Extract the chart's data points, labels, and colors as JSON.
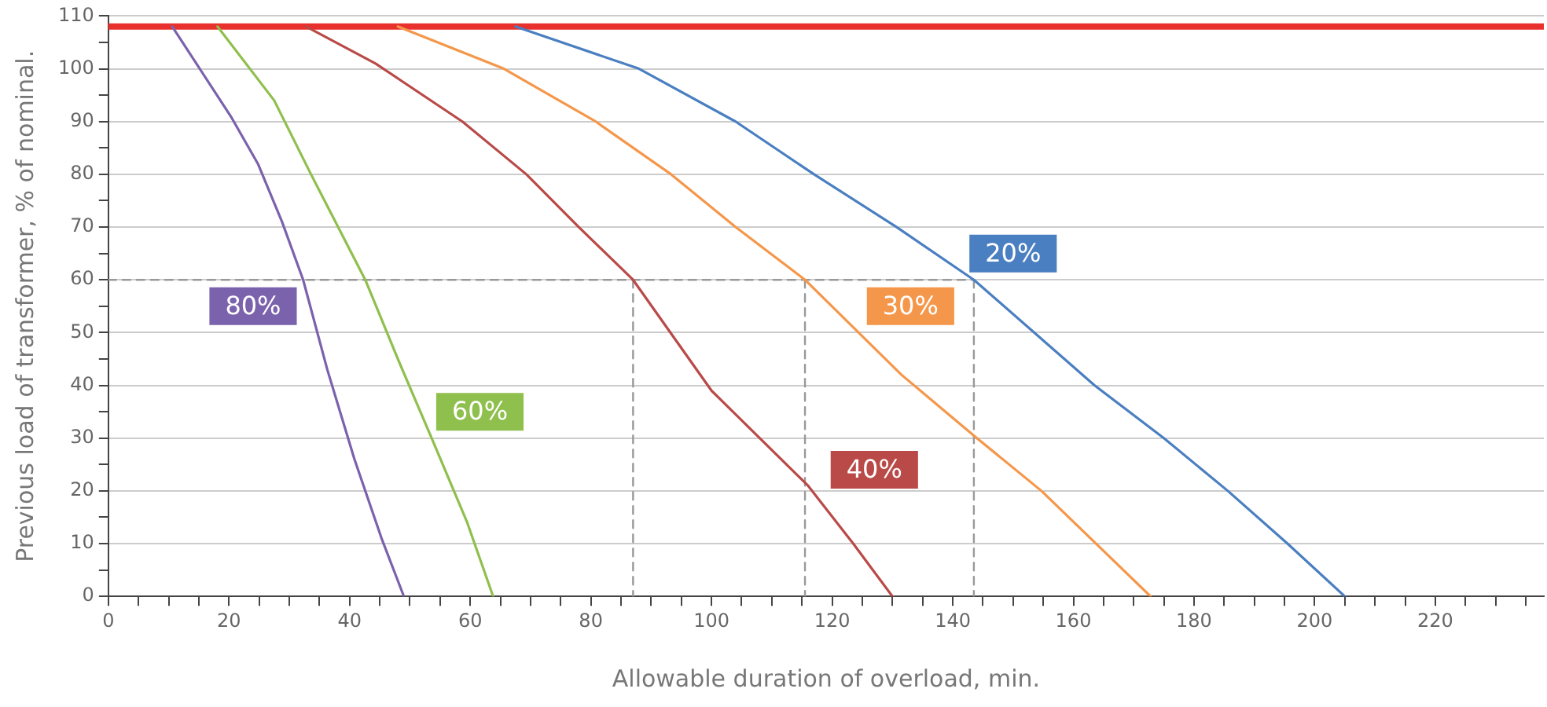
{
  "chart_data": {
    "type": "line",
    "xlabel": "Allowable duration of overload, min.",
    "ylabel": "Previous load of transformer, % of nominal.",
    "xlim": [
      0,
      238
    ],
    "ylim": [
      0,
      110
    ],
    "xticks": [
      0,
      {
        "value": 5,
        "label": null
      },
      20,
      {
        "value": 10,
        "label": null
      },
      {
        "value": 15,
        "label": null
      },
      {
        "value": 25,
        "label": null
      },
      {
        "value": 30,
        "label": null
      },
      {
        "value": 35,
        "label": null
      },
      40,
      {
        "value": 45,
        "label": null
      },
      {
        "value": 50,
        "label": null
      },
      {
        "value": 55,
        "label": null
      },
      60,
      {
        "value": 65,
        "label": null
      },
      {
        "value": 70,
        "label": null
      },
      {
        "value": 75,
        "label": null
      },
      80,
      {
        "value": 85,
        "label": null
      },
      {
        "value": 90,
        "label": null
      },
      {
        "value": 95,
        "label": null
      },
      100,
      {
        "value": 105,
        "label": null
      },
      {
        "value": 110,
        "label": null
      },
      {
        "value": 115,
        "label": null
      },
      120,
      {
        "value": 125,
        "label": null
      },
      {
        "value": 130,
        "label": null
      },
      {
        "value": 135,
        "label": null
      },
      140,
      {
        "value": 145,
        "label": null
      },
      {
        "value": 150,
        "label": null
      },
      {
        "value": 155,
        "label": null
      },
      160,
      {
        "value": 165,
        "label": null
      },
      {
        "value": 170,
        "label": null
      },
      {
        "value": 175,
        "label": null
      },
      180,
      {
        "value": 185,
        "label": null
      },
      {
        "value": 190,
        "label": null
      },
      {
        "value": 195,
        "label": null
      },
      200,
      {
        "value": 205,
        "label": null
      },
      {
        "value": 210,
        "label": null
      },
      {
        "value": 215,
        "label": null
      },
      220,
      {
        "value": 225,
        "label": null
      },
      {
        "value": 230,
        "label": null
      },
      {
        "value": 235,
        "label": null
      }
    ],
    "yticks": [
      0,
      {
        "value": 5,
        "label": null
      },
      10,
      {
        "value": 15,
        "label": null
      },
      20,
      {
        "value": 25,
        "label": null
      },
      30,
      {
        "value": 35,
        "label": null
      },
      40,
      {
        "value": 45,
        "label": null
      },
      50,
      {
        "value": 55,
        "label": null
      },
      60,
      {
        "value": 65,
        "label": null
      },
      70,
      {
        "value": 75,
        "label": null
      },
      80,
      {
        "value": 85,
        "label": null
      },
      90,
      {
        "value": 95,
        "label": null
      },
      100,
      {
        "value": 105,
        "label": null
      },
      110
    ],
    "grid": "y",
    "marker": "none",
    "line_style": "solid",
    "ref_lines": [
      {
        "axis": "y",
        "value": 108,
        "color": "#e8312c"
      }
    ],
    "series": [
      {
        "name": "80%",
        "color": "#7b62ac",
        "x": [
          10.6,
          20.3,
          24.8,
          28.8,
          32.3,
          36.3,
          40.8,
          45.3,
          49
        ],
        "values": [
          108,
          91,
          82,
          71,
          60,
          43,
          26,
          11,
          0
        ]
      },
      {
        "name": "60%",
        "color": "#8fbf4d",
        "x": [
          18.1,
          27.5,
          33.6,
          39,
          42.6,
          48,
          53.6,
          59.5,
          63.8
        ],
        "values": [
          108,
          94,
          80,
          68,
          60,
          45,
          30,
          14,
          0
        ]
      },
      {
        "name": "40%",
        "color": "#b94a48",
        "x": [
          32.8,
          44.3,
          58.7,
          69.3,
          78,
          87,
          100,
          116,
          123.5,
          130
        ],
        "values": [
          108,
          101,
          90,
          80,
          70,
          60,
          39,
          21,
          10,
          0
        ]
      },
      {
        "name": "30%",
        "color": "#f5974a",
        "x": [
          48,
          65.6,
          80.8,
          93.3,
          104,
          115.5,
          131.5,
          144,
          154.7,
          172.8
        ],
        "values": [
          108,
          100,
          90,
          80,
          70,
          60,
          42,
          30,
          20,
          0
        ]
      },
      {
        "name": "20%",
        "color": "#4a7fc1",
        "x": [
          67.5,
          88,
          104,
          117,
          130.7,
          143.5,
          163.5,
          175,
          185.6,
          195.5,
          205
        ],
        "values": [
          108,
          100,
          90,
          80,
          70,
          60,
          40,
          30,
          20,
          10,
          0
        ]
      },
      {
        "color": "#999999",
        "line_style": "dashed",
        "x": [
          0,
          143.5
        ],
        "values": [
          60,
          60
        ]
      },
      {
        "color": "#999999",
        "line_style": "dashed",
        "x": [
          87,
          87
        ],
        "values": [
          60,
          0
        ]
      },
      {
        "color": "#999999",
        "line_style": "dashed",
        "x": [
          115.5,
          115.5
        ],
        "values": [
          60,
          0
        ]
      },
      {
        "color": "#999999",
        "line_style": "dashed",
        "x": [
          143.5,
          143.5
        ],
        "values": [
          60,
          0
        ]
      }
    ]
  }
}
